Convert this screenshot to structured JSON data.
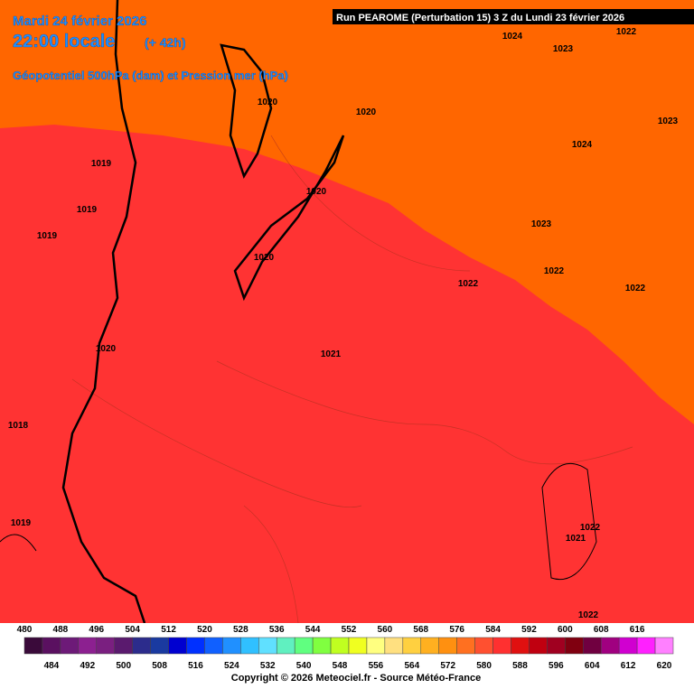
{
  "header": {
    "date": "Mardi 24 février 2026",
    "time": "22:00 locale",
    "lead": "(+ 42h)",
    "field": "Géopotentiel 500hPa (dam) et Pression mer (hPa)",
    "run": "Run PEAROME (Perturbation 15) 3 Z du Lundi 23 février 2026"
  },
  "isobar_labels": [
    "1024",
    "1023",
    "1022",
    "1020",
    "1020",
    "1023",
    "1024",
    "1019",
    "1019",
    "1019",
    "1020",
    "1020",
    "1023",
    "1022",
    "1022",
    "1022",
    "1020",
    "1021",
    "1018",
    "1019",
    "1022",
    "1021",
    "1022"
  ],
  "legend": {
    "top": [
      480,
      488,
      496,
      504,
      512,
      520,
      528,
      536,
      544,
      552,
      560,
      568,
      576,
      584,
      592,
      600,
      608,
      616
    ],
    "bottom": [
      484,
      492,
      500,
      508,
      516,
      524,
      532,
      540,
      548,
      556,
      564,
      572,
      580,
      588,
      596,
      604,
      612,
      620
    ],
    "colors": [
      "#3a0a3a",
      "#5a1060",
      "#6d1a78",
      "#8c2090",
      "#7a1f80",
      "#5a1a6e",
      "#2c2c8c",
      "#1a3aa0",
      "#0000d0",
      "#0030ff",
      "#1060ff",
      "#2090ff",
      "#30c0ff",
      "#60e0ff",
      "#60f0c0",
      "#60ff80",
      "#80ff40",
      "#c0ff20",
      "#f0ff20",
      "#ffff80",
      "#ffe080",
      "#ffd040",
      "#ffb020",
      "#ff9010",
      "#ff7020",
      "#ff5030",
      "#ff3030",
      "#e01010",
      "#c00010",
      "#a00020",
      "#800010",
      "#700040",
      "#a00080",
      "#d000d0",
      "#ff20ff",
      "#ff80ff"
    ]
  },
  "footer": "Copyright © 2026 Meteociel.fr - Source Météo-France"
}
